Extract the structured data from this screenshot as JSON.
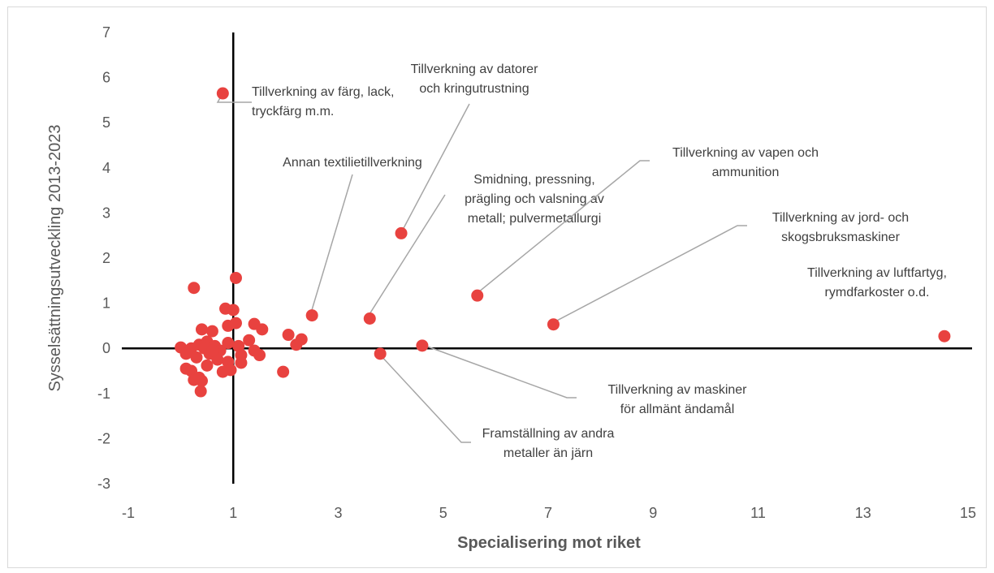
{
  "chart_data": {
    "type": "scatter",
    "xlabel": "Specialisering mot riket",
    "ylabel": "Sysselsättningsutveckling 2013-2023",
    "xlim": [
      -1,
      15
    ],
    "ylim": [
      -3,
      7
    ],
    "x_ticks": [
      -1,
      1,
      3,
      5,
      7,
      9,
      11,
      13,
      15
    ],
    "y_ticks": [
      -3,
      -2,
      -1,
      0,
      1,
      2,
      3,
      4,
      5,
      6,
      7
    ],
    "point_color": "#e8423f",
    "reference_lines": {
      "x": 1,
      "y": 0
    },
    "points": [
      {
        "x": 0.8,
        "y": 5.65
      },
      {
        "x": 4.2,
        "y": 2.55
      },
      {
        "x": 5.65,
        "y": 1.17
      },
      {
        "x": 7.1,
        "y": 0.53
      },
      {
        "x": 14.55,
        "y": 0.27
      },
      {
        "x": 2.5,
        "y": 0.73
      },
      {
        "x": 3.6,
        "y": 0.66
      },
      {
        "x": 4.6,
        "y": 0.06
      },
      {
        "x": 3.8,
        "y": -0.12
      },
      {
        "x": 0.25,
        "y": 1.34
      },
      {
        "x": 1.05,
        "y": 1.56
      },
      {
        "x": 0.85,
        "y": 0.88
      },
      {
        "x": 1.0,
        "y": 0.85
      },
      {
        "x": 0.9,
        "y": 0.5
      },
      {
        "x": 1.05,
        "y": 0.56
      },
      {
        "x": 1.4,
        "y": 0.54
      },
      {
        "x": 1.55,
        "y": 0.42
      },
      {
        "x": 0.4,
        "y": 0.42
      },
      {
        "x": 0.6,
        "y": 0.38
      },
      {
        "x": 1.3,
        "y": 0.18
      },
      {
        "x": 2.05,
        "y": 0.3
      },
      {
        "x": 2.3,
        "y": 0.2
      },
      {
        "x": 2.2,
        "y": 0.08
      },
      {
        "x": 0.0,
        "y": 0.02
      },
      {
        "x": 0.2,
        "y": 0.0
      },
      {
        "x": 0.35,
        "y": 0.08
      },
      {
        "x": 0.5,
        "y": 0.15
      },
      {
        "x": 0.65,
        "y": 0.05
      },
      {
        "x": 0.75,
        "y": -0.05
      },
      {
        "x": 0.9,
        "y": 0.12
      },
      {
        "x": 1.1,
        "y": 0.05
      },
      {
        "x": 1.4,
        "y": -0.05
      },
      {
        "x": 1.5,
        "y": -0.15
      },
      {
        "x": 1.15,
        "y": -0.15
      },
      {
        "x": 0.1,
        "y": -0.12
      },
      {
        "x": 0.3,
        "y": -0.2
      },
      {
        "x": 0.55,
        "y": -0.12
      },
      {
        "x": 0.7,
        "y": -0.25
      },
      {
        "x": 0.9,
        "y": -0.3
      },
      {
        "x": 1.15,
        "y": -0.32
      },
      {
        "x": 0.1,
        "y": -0.45
      },
      {
        "x": 0.2,
        "y": -0.5
      },
      {
        "x": 0.5,
        "y": -0.38
      },
      {
        "x": 0.8,
        "y": -0.52
      },
      {
        "x": 0.95,
        "y": -0.48
      },
      {
        "x": 0.25,
        "y": -0.7
      },
      {
        "x": 0.35,
        "y": -0.65
      },
      {
        "x": 0.4,
        "y": -0.72
      },
      {
        "x": 0.38,
        "y": -0.95
      },
      {
        "x": 1.95,
        "y": -0.52
      },
      {
        "x": 0.45,
        "y": 0.0
      },
      {
        "x": 0.6,
        "y": -0.05
      }
    ],
    "annotations": [
      {
        "lines": [
          "Tillverkning av färg, lack,",
          "tryckfärg m.m."
        ],
        "point": 0,
        "anchor": "start"
      },
      {
        "lines": [
          "Tillverkning av datorer",
          "och kringutrustning"
        ],
        "point": 1,
        "anchor": "middle"
      },
      {
        "lines": [
          "Annan textilietillverkning"
        ],
        "point": 5,
        "anchor": "middle"
      },
      {
        "lines": [
          "Smidning, pressning,",
          "prägling och valsning av",
          "metall; pulvermetallurgi"
        ],
        "point": 6,
        "anchor": "middle"
      },
      {
        "lines": [
          "Tillverkning av vapen och",
          "ammunition"
        ],
        "point": 2,
        "anchor": "middle"
      },
      {
        "lines": [
          "Tillverkning av jord- och",
          "skogsbruksmaskiner"
        ],
        "point": 3,
        "anchor": "middle"
      },
      {
        "lines": [
          "Tillverkning av luftfartyg,",
          "rymdfarkoster o.d."
        ],
        "point": 4,
        "anchor": "middle"
      },
      {
        "lines": [
          "Tillverkning av maskiner",
          "för allmänt ändamål"
        ],
        "point": 7,
        "anchor": "middle"
      },
      {
        "lines": [
          "Framställning av andra",
          "metaller än järn"
        ],
        "point": 8,
        "anchor": "middle"
      }
    ]
  }
}
